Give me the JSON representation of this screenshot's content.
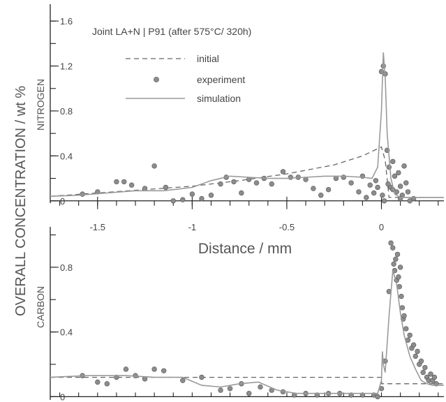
{
  "chart_data": [
    {
      "type": "scatter",
      "panel": "top",
      "title": "Joint LA+N | P91 (after 575°C/ 320h)",
      "ylabel": "NITROGEN",
      "shared_ylabel": "OVERALL CONCENTRATION  / wt %",
      "xlabel": "Distance / mm",
      "xlim": [
        -1.75,
        0.33
      ],
      "ylim": [
        -0.02,
        1.75
      ],
      "x_ticks": [
        -1.5,
        -1,
        -0.5,
        0
      ],
      "x_tick_labels": [
        "-1.5",
        "-1",
        "-0.5",
        "0"
      ],
      "y_ticks": [
        0,
        0.4,
        0.8,
        1.2,
        1.6
      ],
      "y_tick_labels": [
        "0",
        "0.4",
        "0.8",
        "1.2",
        "1.6"
      ],
      "legend": {
        "position": "top-left",
        "entries": [
          {
            "label": "initial",
            "style": "dashed"
          },
          {
            "label": "experiment",
            "style": "marker"
          },
          {
            "label": "simulation",
            "style": "solid"
          }
        ]
      },
      "series": [
        {
          "name": "initial",
          "x": [
            -1.75,
            -1.5,
            -1.25,
            -1.0,
            -0.75,
            -0.5,
            -0.25,
            -0.1,
            0.0,
            0.02,
            0.04,
            0.33
          ],
          "y": [
            0.04,
            0.07,
            0.1,
            0.13,
            0.18,
            0.24,
            0.32,
            0.4,
            0.48,
            0.36,
            0.03,
            0.03
          ]
        },
        {
          "name": "experiment",
          "x": [
            -1.58,
            -1.5,
            -1.4,
            -1.36,
            -1.32,
            -1.25,
            -1.2,
            -1.14,
            -1.1,
            -1.05,
            -1.0,
            -0.95,
            -0.9,
            -0.85,
            -0.82,
            -0.78,
            -0.74,
            -0.7,
            -0.66,
            -0.62,
            -0.58,
            -0.52,
            -0.48,
            -0.44,
            -0.4,
            -0.36,
            -0.32,
            -0.28,
            -0.24,
            -0.2,
            -0.16,
            -0.12,
            -0.08,
            -0.06,
            -0.04,
            -0.02,
            0.0,
            0.01,
            0.02,
            0.03,
            0.04,
            0.05,
            0.06,
            0.07,
            0.08,
            0.09,
            0.1,
            0.11,
            0.12,
            0.13,
            0.15,
            0.17,
            -0.1,
            -0.03,
            0.005,
            0.015,
            0.035,
            0.06,
            0.1,
            0.14
          ],
          "y": [
            0.06,
            0.08,
            0.17,
            0.17,
            0.14,
            0.11,
            0.31,
            0.12,
            0.0,
            0.01,
            0.06,
            0.02,
            0.05,
            0.15,
            0.21,
            0.17,
            0.07,
            0.19,
            0.16,
            0.2,
            0.15,
            0.26,
            0.21,
            0.21,
            0.19,
            0.11,
            0.05,
            0.1,
            0.2,
            0.21,
            0.16,
            0.08,
            0.03,
            0.14,
            0.07,
            0.12,
            1.15,
            1.2,
            1.13,
            0.45,
            0.3,
            0.12,
            0.35,
            0.22,
            0.08,
            0.25,
            0.13,
            0.05,
            0.31,
            0.16,
            0.0,
            0.02,
            0.22,
            0.18,
            0.05,
            0.0,
            0.15,
            0.1,
            0.02,
            0.08
          ]
        },
        {
          "name": "simulation",
          "x": [
            -1.75,
            -1.6,
            -1.45,
            -1.3,
            -1.15,
            -1.0,
            -0.9,
            -0.8,
            -0.7,
            -0.6,
            -0.5,
            -0.4,
            -0.3,
            -0.2,
            -0.1,
            -0.05,
            -0.02,
            0.0,
            0.01,
            0.02,
            0.03,
            0.05,
            0.07,
            0.1,
            0.15,
            0.2,
            0.33
          ],
          "y": [
            0.04,
            0.05,
            0.07,
            0.09,
            0.09,
            0.12,
            0.18,
            0.22,
            0.21,
            0.2,
            0.2,
            0.21,
            0.22,
            0.22,
            0.21,
            0.2,
            0.3,
            0.8,
            1.32,
            1.1,
            0.6,
            0.2,
            0.06,
            0.03,
            0.03,
            0.03,
            0.03
          ]
        }
      ]
    },
    {
      "type": "scatter",
      "panel": "bottom",
      "ylabel": "CARBON",
      "xlim": [
        -1.75,
        0.33
      ],
      "ylim": [
        -0.02,
        1.05
      ],
      "y_ticks": [
        0,
        0.4,
        0.8
      ],
      "y_tick_labels": [
        "0",
        "0.4",
        "0.8"
      ],
      "series": [
        {
          "name": "initial",
          "x": [
            -1.75,
            0.0,
            0.001,
            0.33
          ],
          "y": [
            0.12,
            0.12,
            0.08,
            0.08
          ]
        },
        {
          "name": "experiment",
          "x": [
            -1.58,
            -1.5,
            -1.45,
            -1.4,
            -1.35,
            -1.3,
            -1.25,
            -1.2,
            -1.15,
            -1.05,
            -0.95,
            -0.85,
            -0.8,
            -0.74,
            -0.7,
            -0.64,
            -0.58,
            -0.52,
            -0.46,
            -0.4,
            -0.34,
            -0.28,
            -0.22,
            -0.16,
            -0.1,
            -0.04,
            -0.02,
            0.0,
            0.02,
            0.04,
            0.05,
            0.06,
            0.065,
            0.07,
            0.075,
            0.08,
            0.085,
            0.09,
            0.095,
            0.1,
            0.105,
            0.11,
            0.115,
            0.12,
            0.13,
            0.14,
            0.15,
            0.16,
            0.17,
            0.18,
            0.19,
            0.2,
            0.21,
            0.22,
            0.23,
            0.24,
            0.25,
            0.26,
            0.27,
            0.28,
            0.29
          ],
          "y": [
            0.13,
            0.09,
            0.08,
            0.12,
            0.17,
            0.13,
            0.11,
            0.17,
            0.16,
            0.1,
            0.12,
            0.04,
            0.05,
            0.08,
            0.02,
            0.06,
            0.04,
            0.03,
            0.01,
            0.02,
            0.01,
            0.02,
            0.02,
            0.01,
            0.01,
            0.01,
            0.0,
            0.05,
            0.22,
            0.65,
            0.95,
            0.92,
            0.82,
            0.78,
            0.85,
            0.72,
            0.88,
            0.74,
            0.68,
            0.8,
            0.62,
            0.55,
            0.48,
            0.5,
            0.42,
            0.35,
            0.38,
            0.3,
            0.32,
            0.25,
            0.28,
            0.2,
            0.22,
            0.15,
            0.18,
            0.12,
            0.1,
            0.14,
            0.1,
            0.12,
            0.08
          ]
        },
        {
          "name": "simulation",
          "x": [
            -1.75,
            -1.55,
            -1.35,
            -1.2,
            -1.05,
            -0.95,
            -0.85,
            -0.75,
            -0.65,
            -0.55,
            -0.45,
            -0.35,
            -0.25,
            -0.15,
            -0.05,
            -0.02,
            0.0,
            0.005,
            0.01,
            0.02,
            0.04,
            0.06,
            0.08,
            0.1,
            0.12,
            0.15,
            0.18,
            0.21,
            0.24,
            0.27,
            0.3,
            0.33
          ],
          "y": [
            0.12,
            0.13,
            0.13,
            0.12,
            0.12,
            0.07,
            0.06,
            0.08,
            0.09,
            0.04,
            0.02,
            0.02,
            0.02,
            0.02,
            0.02,
            0.02,
            0.1,
            0.28,
            0.2,
            0.15,
            0.5,
            0.78,
            0.7,
            0.52,
            0.38,
            0.25,
            0.17,
            0.1,
            0.08,
            0.07,
            0.07,
            0.07
          ]
        }
      ]
    }
  ],
  "colors": {
    "axis": "#222222",
    "marker": "#8c8c8c",
    "marker_stroke": "#555555",
    "initial": "#666666",
    "simulation": "#9a9a9a",
    "text": "#444444"
  }
}
